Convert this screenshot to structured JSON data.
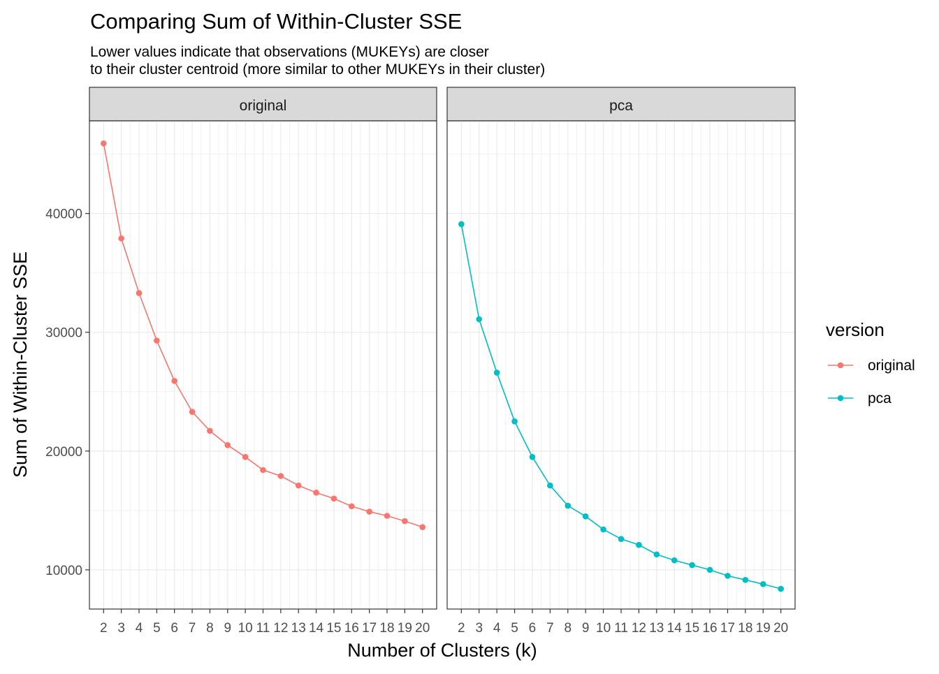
{
  "chart_data": {
    "type": "line",
    "title": "Comparing Sum of Within-Cluster SSE",
    "subtitle_lines": [
      "Lower values indicate that observations (MUKEYs) are closer",
      "to their cluster centroid (more similar to other MUKEYs in their cluster)"
    ],
    "xlabel": "Number of Clusters (k)",
    "ylabel": "Sum of Within-Cluster SSE",
    "x": [
      2,
      3,
      4,
      5,
      6,
      7,
      8,
      9,
      10,
      11,
      12,
      13,
      14,
      15,
      16,
      17,
      18,
      19,
      20
    ],
    "x_tick_labels": [
      "2",
      "3",
      "4",
      "5",
      "6",
      "7",
      "8",
      "9",
      "10",
      "11",
      "12",
      "13",
      "14",
      "15",
      "16",
      "17",
      "18",
      "19",
      "20"
    ],
    "xlim": [
      1.2,
      20.8
    ],
    "ylim": [
      6700,
      47800
    ],
    "y_ticks": [
      10000,
      20000,
      30000,
      40000
    ],
    "y_tick_labels": [
      "10000",
      "20000",
      "30000",
      "40000"
    ],
    "y_minor_ticks": [
      15000,
      25000,
      35000,
      45000
    ],
    "grid": true,
    "facets": [
      {
        "label": "original",
        "series": [
          {
            "name": "original",
            "color": "#F8766D",
            "values": [
              45900,
              37900,
              33300,
              29300,
              25900,
              23300,
              21700,
              20500,
              19500,
              18400,
              17900,
              17100,
              16500,
              16000,
              15350,
              14900,
              14550,
              14100,
              13600
            ]
          }
        ]
      },
      {
        "label": "pca",
        "series": [
          {
            "name": "pca",
            "color": "#00BFC4",
            "values": [
              39100,
              31100,
              26600,
              22500,
              19500,
              17100,
              15400,
              14500,
              13400,
              12600,
              12100,
              11300,
              10800,
              10400,
              10000,
              9500,
              9150,
              8800,
              8400
            ]
          }
        ]
      }
    ],
    "legend": {
      "title": "version",
      "position": "right",
      "items": [
        {
          "label": "original",
          "color": "#F8766D"
        },
        {
          "label": "pca",
          "color": "#00BFC4"
        }
      ]
    }
  }
}
